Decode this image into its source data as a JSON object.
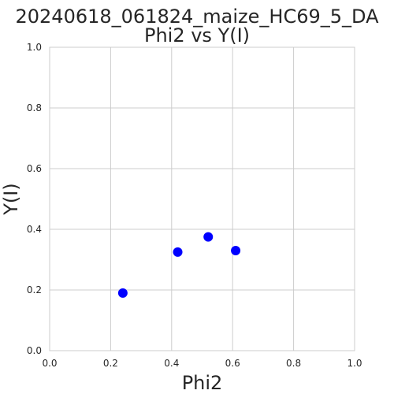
{
  "chart_data": {
    "type": "scatter",
    "title_lines": [
      "20240618_061824_maize_HC69_5_DA",
      "Phi2 vs Y(I)"
    ],
    "xlabel": "Phi2",
    "ylabel": "Y(I)",
    "xlim": [
      0.0,
      1.0
    ],
    "ylim": [
      0.0,
      1.0
    ],
    "xticks": [
      "0.0",
      "0.2",
      "0.4",
      "0.6",
      "0.8",
      "1.0"
    ],
    "yticks": [
      "0.0",
      "0.2",
      "0.4",
      "0.6",
      "0.8",
      "1.0"
    ],
    "grid": true,
    "points_color": "#0000ff",
    "points": [
      {
        "x": 0.24,
        "y": 0.19
      },
      {
        "x": 0.42,
        "y": 0.325
      },
      {
        "x": 0.52,
        "y": 0.375
      },
      {
        "x": 0.61,
        "y": 0.33
      }
    ]
  }
}
